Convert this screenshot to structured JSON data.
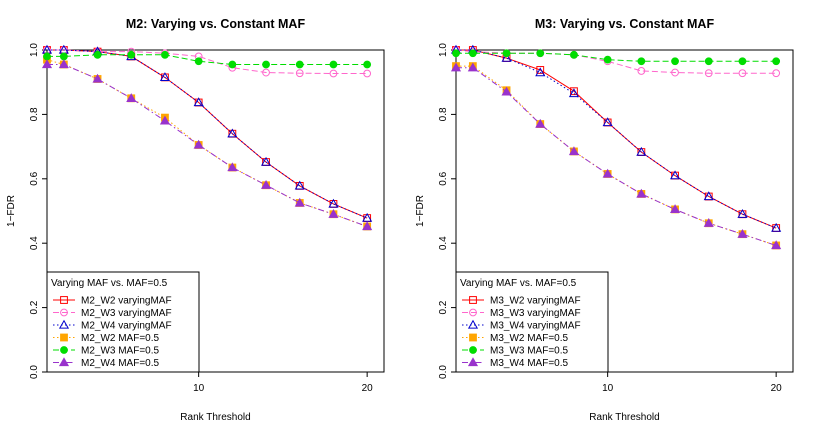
{
  "chart_data": [
    {
      "type": "line",
      "title": "M2: Varying vs. Constant MAF",
      "xlabel": "Rank Threshold",
      "ylabel": "1−FDR",
      "xlim": [
        1,
        21
      ],
      "ylim": [
        0,
        1
      ],
      "xticks": [
        10,
        20
      ],
      "xtick_labels": [
        "10",
        "20"
      ],
      "yticks": [
        0.0,
        0.2,
        0.4,
        0.6,
        0.8,
        1.0
      ],
      "ytick_labels": [
        "0.0",
        "0.2",
        "0.4",
        "0.6",
        "0.8",
        "1.0"
      ],
      "grid": false,
      "legend": {
        "title": "Varying MAF vs. MAF=0.5",
        "position": "bottom-left"
      },
      "x": [
        1,
        2,
        4,
        6,
        8,
        10,
        12,
        14,
        16,
        18,
        20
      ],
      "series": [
        {
          "name": "M2_W2 varyingMAF",
          "color": "#ff0000",
          "marker": "square",
          "dash": "solid",
          "values": [
            1.0,
            1.0,
            0.995,
            0.98,
            0.915,
            0.837,
            0.74,
            0.652,
            0.578,
            0.522,
            0.478
          ]
        },
        {
          "name": "M2_W3 varyingMAF",
          "color": "#ff66cc",
          "marker": "circle",
          "dash": "dashed",
          "values": [
            1.0,
            1.0,
            0.995,
            0.995,
            0.99,
            0.98,
            0.945,
            0.93,
            0.928,
            0.927,
            0.927
          ]
        },
        {
          "name": "M2_W4 varyingMAF",
          "color": "#0000cc",
          "marker": "triangle",
          "dash": "dotted",
          "values": [
            1.0,
            1.0,
            0.995,
            0.98,
            0.915,
            0.837,
            0.74,
            0.652,
            0.578,
            0.522,
            0.478
          ]
        },
        {
          "name": "M2_W2 MAF=0.5",
          "color": "#ffa500",
          "marker": "filled-square",
          "dash": "dotted",
          "values": [
            0.97,
            0.955,
            0.91,
            0.85,
            0.79,
            0.705,
            0.635,
            0.58,
            0.525,
            0.49,
            0.452
          ]
        },
        {
          "name": "M2_W3 MAF=0.5",
          "color": "#00dd00",
          "marker": "filled-circle",
          "dash": "dashed",
          "values": [
            0.98,
            0.98,
            0.985,
            0.985,
            0.985,
            0.965,
            0.955,
            0.955,
            0.955,
            0.955,
            0.955
          ]
        },
        {
          "name": "M2_W4 MAF=0.5",
          "color": "#9933cc",
          "marker": "filled-triangle",
          "dash": "dashdot",
          "values": [
            0.955,
            0.955,
            0.91,
            0.85,
            0.78,
            0.705,
            0.635,
            0.58,
            0.525,
            0.49,
            0.452
          ]
        }
      ]
    },
    {
      "type": "line",
      "title": "M3: Varying vs. Constant MAF",
      "xlabel": "Rank Threshold",
      "ylabel": "1−FDR",
      "xlim": [
        1,
        21
      ],
      "ylim": [
        0,
        1
      ],
      "xticks": [
        10,
        20
      ],
      "xtick_labels": [
        "10",
        "20"
      ],
      "yticks": [
        0.0,
        0.2,
        0.4,
        0.6,
        0.8,
        1.0
      ],
      "ytick_labels": [
        "0.0",
        "0.2",
        "0.4",
        "0.6",
        "0.8",
        "1.0"
      ],
      "grid": false,
      "legend": {
        "title": "Varying MAF vs. MAF=0.5",
        "position": "bottom-left"
      },
      "x": [
        1,
        2,
        4,
        6,
        8,
        10,
        12,
        14,
        16,
        18,
        20
      ],
      "series": [
        {
          "name": "M3_W2 varyingMAF",
          "color": "#ff0000",
          "marker": "square",
          "dash": "solid",
          "values": [
            1.0,
            1.0,
            0.975,
            0.938,
            0.872,
            0.775,
            0.683,
            0.61,
            0.545,
            0.49,
            0.447
          ]
        },
        {
          "name": "M3_W3 varyingMAF",
          "color": "#ff66cc",
          "marker": "circle",
          "dash": "dashed",
          "values": [
            1.0,
            0.995,
            0.99,
            0.99,
            0.985,
            0.965,
            0.935,
            0.93,
            0.928,
            0.928,
            0.928
          ]
        },
        {
          "name": "M3_W4 varyingMAF",
          "color": "#0000cc",
          "marker": "triangle",
          "dash": "dotted",
          "values": [
            1.0,
            1.0,
            0.975,
            0.93,
            0.865,
            0.775,
            0.683,
            0.61,
            0.545,
            0.49,
            0.447
          ]
        },
        {
          "name": "M3_W2 MAF=0.5",
          "color": "#ffa500",
          "marker": "filled-square",
          "dash": "dotted",
          "values": [
            0.95,
            0.95,
            0.875,
            0.77,
            0.685,
            0.615,
            0.553,
            0.505,
            0.462,
            0.428,
            0.393
          ]
        },
        {
          "name": "M3_W3 MAF=0.5",
          "color": "#00dd00",
          "marker": "filled-circle",
          "dash": "dashed",
          "values": [
            0.99,
            0.99,
            0.99,
            0.99,
            0.985,
            0.97,
            0.965,
            0.965,
            0.965,
            0.965,
            0.965
          ]
        },
        {
          "name": "M3_W4 MAF=0.5",
          "color": "#9933cc",
          "marker": "filled-triangle",
          "dash": "dashdot",
          "values": [
            0.945,
            0.945,
            0.87,
            0.77,
            0.685,
            0.615,
            0.553,
            0.505,
            0.462,
            0.428,
            0.393
          ]
        }
      ]
    }
  ]
}
